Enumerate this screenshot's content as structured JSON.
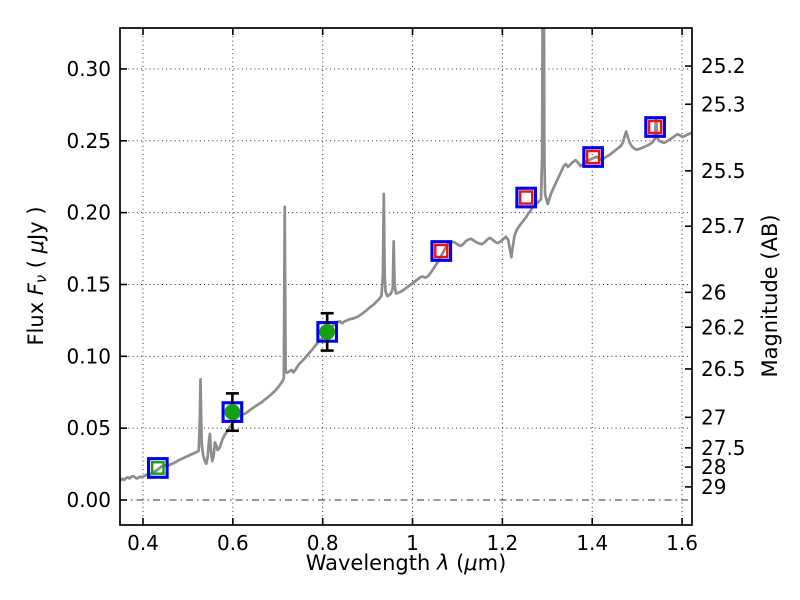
{
  "chart_data": {
    "type": "line+scatter",
    "title": "",
    "xlabel_parts": [
      {
        "t": "Wavelength  "
      },
      {
        "t": "λ",
        "i": true
      },
      {
        "t": " ("
      },
      {
        "t": "μ",
        "i": true
      },
      {
        "t": "m)"
      }
    ],
    "ylabel_left_parts": [
      {
        "t": "Flux  "
      },
      {
        "t": "F",
        "i": true
      },
      {
        "t": "ν",
        "i": true,
        "sub": true
      },
      {
        "t": "  ( "
      },
      {
        "t": "μ",
        "i": true
      },
      {
        "t": "Jy )"
      }
    ],
    "ylabel_right": "Magnitude (AB)",
    "xlim": [
      0.3488,
      1.6221
    ],
    "ylim_flux": [
      -0.0174,
      0.3285
    ],
    "grid": true,
    "x_ticks": [
      {
        "value": 0.4,
        "label": "0.4"
      },
      {
        "value": 0.6,
        "label": "0.6"
      },
      {
        "value": 0.8,
        "label": "0.8"
      },
      {
        "value": 1.0,
        "label": "1"
      },
      {
        "value": 1.2,
        "label": "1.2"
      },
      {
        "value": 1.4,
        "label": "1.4"
      },
      {
        "value": 1.6,
        "label": "1.6"
      }
    ],
    "y_ticks_flux": [
      {
        "value": 0.0,
        "label": "0.00",
        "style": "dashdot"
      },
      {
        "value": 0.05,
        "label": "0.05",
        "style": "dotted"
      },
      {
        "value": 0.1,
        "label": "0.10",
        "style": "dotted"
      },
      {
        "value": 0.15,
        "label": "0.15",
        "style": "dotted"
      },
      {
        "value": 0.2,
        "label": "0.20",
        "style": "dotted"
      },
      {
        "value": 0.25,
        "label": "0.25",
        "style": "dotted"
      },
      {
        "value": 0.3,
        "label": "0.30",
        "style": "dotted"
      }
    ],
    "y_ticks_mag": [
      {
        "value": 25.2,
        "label": "25.2"
      },
      {
        "value": 25.3,
        "label": "25.3"
      },
      {
        "value": 25.5,
        "label": "25.5"
      },
      {
        "value": 25.7,
        "label": "25.7"
      },
      {
        "value": 26.0,
        "label": "26"
      },
      {
        "value": 26.2,
        "label": "26.2"
      },
      {
        "value": 26.5,
        "label": "26.5"
      },
      {
        "value": 27.0,
        "label": "27"
      },
      {
        "value": 27.5,
        "label": "27.5"
      },
      {
        "value": 28.0,
        "label": "28"
      },
      {
        "value": 29.0,
        "label": "29"
      }
    ],
    "ab_zeropoint_ujy": 23.9,
    "colors": {
      "spectrum": "#8d8d8d",
      "square_edge": "#0000ee",
      "green": "#14a014",
      "red": "#ee1111",
      "errorbar": "#000000",
      "axes": "#000000",
      "grid": "#333333",
      "background": "#ffffff"
    },
    "photometry": [
      {
        "lambda": 0.433,
        "flux": 0.0223,
        "err": null,
        "style": "square-green-open"
      },
      {
        "lambda": 0.599,
        "flux": 0.0612,
        "err": 0.013,
        "style": "square-green-circle"
      },
      {
        "lambda": 0.81,
        "flux": 0.117,
        "err": 0.013,
        "style": "square-green-circle"
      },
      {
        "lambda": 1.064,
        "flux": 0.1733,
        "err": null,
        "style": "square-red-open"
      },
      {
        "lambda": 1.253,
        "flux": 0.2105,
        "err": null,
        "style": "square-red-open"
      },
      {
        "lambda": 1.402,
        "flux": 0.2387,
        "err": null,
        "style": "square-red-open"
      },
      {
        "lambda": 1.54,
        "flux": 0.2596,
        "err": null,
        "style": "square-red-open"
      }
    ],
    "spectrum": {
      "name": "model-spectrum",
      "points": [
        [
          0.349,
          0.0135
        ],
        [
          0.354,
          0.0148
        ],
        [
          0.358,
          0.014
        ],
        [
          0.362,
          0.0152
        ],
        [
          0.366,
          0.0158
        ],
        [
          0.37,
          0.015
        ],
        [
          0.374,
          0.0161
        ],
        [
          0.378,
          0.0166
        ],
        [
          0.382,
          0.0158
        ],
        [
          0.386,
          0.015
        ],
        [
          0.39,
          0.0155
        ],
        [
          0.394,
          0.0163
        ],
        [
          0.398,
          0.0158
        ],
        [
          0.402,
          0.0165
        ],
        [
          0.406,
          0.0172
        ],
        [
          0.41,
          0.018
        ],
        [
          0.415,
          0.0178
        ],
        [
          0.42,
          0.019
        ],
        [
          0.425,
          0.0198
        ],
        [
          0.43,
          0.0205
        ],
        [
          0.435,
          0.0218
        ],
        [
          0.44,
          0.023
        ],
        [
          0.445,
          0.0238
        ],
        [
          0.45,
          0.0241
        ],
        [
          0.455,
          0.0239
        ],
        [
          0.46,
          0.0246
        ],
        [
          0.465,
          0.0252
        ],
        [
          0.47,
          0.026
        ],
        [
          0.475,
          0.0268
        ],
        [
          0.48,
          0.0278
        ],
        [
          0.485,
          0.0285
        ],
        [
          0.49,
          0.0292
        ],
        [
          0.495,
          0.03
        ],
        [
          0.5,
          0.0306
        ],
        [
          0.505,
          0.0314
        ],
        [
          0.51,
          0.032
        ],
        [
          0.515,
          0.0328
        ],
        [
          0.52,
          0.0335
        ],
        [
          0.524,
          0.0342
        ],
        [
          0.5265,
          0.056
        ],
        [
          0.528,
          0.084
        ],
        [
          0.5295,
          0.056
        ],
        [
          0.531,
          0.038
        ],
        [
          0.534,
          0.031
        ],
        [
          0.538,
          0.027
        ],
        [
          0.541,
          0.0252
        ],
        [
          0.544,
          0.03
        ],
        [
          0.547,
          0.042
        ],
        [
          0.549,
          0.046
        ],
        [
          0.551,
          0.035
        ],
        [
          0.554,
          0.027
        ],
        [
          0.557,
          0.03
        ],
        [
          0.56,
          0.04
        ],
        [
          0.563,
          0.038
        ],
        [
          0.566,
          0.0348
        ],
        [
          0.57,
          0.036
        ],
        [
          0.574,
          0.0396
        ],
        [
          0.578,
          0.043
        ],
        [
          0.583,
          0.0458
        ],
        [
          0.588,
          0.0482
        ],
        [
          0.593,
          0.0505
        ],
        [
          0.598,
          0.053
        ],
        [
          0.604,
          0.0556
        ],
        [
          0.61,
          0.0578
        ],
        [
          0.616,
          0.059
        ],
        [
          0.622,
          0.0596
        ],
        [
          0.628,
          0.0602
        ],
        [
          0.634,
          0.0616
        ],
        [
          0.64,
          0.063
        ],
        [
          0.646,
          0.0644
        ],
        [
          0.652,
          0.0656
        ],
        [
          0.658,
          0.0668
        ],
        [
          0.664,
          0.068
        ],
        [
          0.67,
          0.0696
        ],
        [
          0.676,
          0.071
        ],
        [
          0.682,
          0.0726
        ],
        [
          0.688,
          0.0742
        ],
        [
          0.694,
          0.076
        ],
        [
          0.7,
          0.0782
        ],
        [
          0.706,
          0.0806
        ],
        [
          0.711,
          0.083
        ],
        [
          0.7135,
          0.085
        ],
        [
          0.7155,
          0.204
        ],
        [
          0.7175,
          0.089
        ],
        [
          0.721,
          0.0886
        ],
        [
          0.726,
          0.0896
        ],
        [
          0.731,
          0.0905
        ],
        [
          0.735,
          0.0888
        ],
        [
          0.739,
          0.0905
        ],
        [
          0.744,
          0.093
        ],
        [
          0.749,
          0.0952
        ],
        [
          0.754,
          0.0966
        ],
        [
          0.76,
          0.0986
        ],
        [
          0.766,
          0.1008
        ],
        [
          0.772,
          0.103
        ],
        [
          0.778,
          0.1052
        ],
        [
          0.784,
          0.1076
        ],
        [
          0.79,
          0.1098
        ],
        [
          0.796,
          0.1118
        ],
        [
          0.802,
          0.1136
        ],
        [
          0.808,
          0.1152
        ],
        [
          0.814,
          0.118
        ],
        [
          0.82,
          0.1205
        ],
        [
          0.826,
          0.1222
        ],
        [
          0.832,
          0.1236
        ],
        [
          0.838,
          0.1244
        ],
        [
          0.843,
          0.123
        ],
        [
          0.848,
          0.1242
        ],
        [
          0.854,
          0.125
        ],
        [
          0.86,
          0.1258
        ],
        [
          0.866,
          0.1262
        ],
        [
          0.872,
          0.1268
        ],
        [
          0.878,
          0.1276
        ],
        [
          0.884,
          0.1288
        ],
        [
          0.89,
          0.1302
        ],
        [
          0.896,
          0.1316
        ],
        [
          0.902,
          0.1332
        ],
        [
          0.908,
          0.1348
        ],
        [
          0.914,
          0.1362
        ],
        [
          0.92,
          0.1382
        ],
        [
          0.926,
          0.14
        ],
        [
          0.931,
          0.1424
        ],
        [
          0.934,
          0.156
        ],
        [
          0.936,
          0.213
        ],
        [
          0.938,
          0.156
        ],
        [
          0.94,
          0.145
        ],
        [
          0.944,
          0.1418
        ],
        [
          0.948,
          0.1426
        ],
        [
          0.952,
          0.1438
        ],
        [
          0.956,
          0.147
        ],
        [
          0.958,
          0.18
        ],
        [
          0.96,
          0.15
        ],
        [
          0.963,
          0.1438
        ],
        [
          0.968,
          0.1442
        ],
        [
          0.974,
          0.145
        ],
        [
          0.98,
          0.1462
        ],
        [
          0.986,
          0.1476
        ],
        [
          0.992,
          0.149
        ],
        [
          0.998,
          0.1504
        ],
        [
          1.004,
          0.1518
        ],
        [
          1.01,
          0.1532
        ],
        [
          1.016,
          0.1548
        ],
        [
          1.022,
          0.1556
        ],
        [
          1.028,
          0.1548
        ],
        [
          1.034,
          0.1556
        ],
        [
          1.04,
          0.158
        ],
        [
          1.046,
          0.1608
        ],
        [
          1.052,
          0.1636
        ],
        [
          1.058,
          0.1664
        ],
        [
          1.064,
          0.17
        ],
        [
          1.07,
          0.1736
        ],
        [
          1.076,
          0.1768
        ],
        [
          1.082,
          0.1788
        ],
        [
          1.088,
          0.1798
        ],
        [
          1.094,
          0.1792
        ],
        [
          1.1,
          0.178
        ],
        [
          1.106,
          0.1768
        ],
        [
          1.112,
          0.1778
        ],
        [
          1.118,
          0.18
        ],
        [
          1.124,
          0.1812
        ],
        [
          1.13,
          0.1818
        ],
        [
          1.136,
          0.1806
        ],
        [
          1.142,
          0.1794
        ],
        [
          1.148,
          0.1786
        ],
        [
          1.154,
          0.178
        ],
        [
          1.16,
          0.1792
        ],
        [
          1.166,
          0.1812
        ],
        [
          1.172,
          0.1824
        ],
        [
          1.178,
          0.1812
        ],
        [
          1.184,
          0.1796
        ],
        [
          1.19,
          0.1788
        ],
        [
          1.196,
          0.18
        ],
        [
          1.202,
          0.1816
        ],
        [
          1.208,
          0.1832
        ],
        [
          1.213,
          0.181
        ],
        [
          1.217,
          0.174
        ],
        [
          1.22,
          0.169
        ],
        [
          1.223,
          0.176
        ],
        [
          1.227,
          0.184
        ],
        [
          1.232,
          0.188
        ],
        [
          1.237,
          0.1905
        ],
        [
          1.242,
          0.1925
        ],
        [
          1.247,
          0.1945
        ],
        [
          1.252,
          0.1965
        ],
        [
          1.257,
          0.199
        ],
        [
          1.262,
          0.201
        ],
        [
          1.267,
          0.2036
        ],
        [
          1.272,
          0.2052
        ],
        [
          1.277,
          0.2066
        ],
        [
          1.282,
          0.208
        ],
        [
          1.286,
          0.2094
        ],
        [
          1.2885,
          0.24
        ],
        [
          1.29,
          0.4
        ],
        [
          1.292,
          0.4
        ],
        [
          1.2935,
          0.24
        ],
        [
          1.295,
          0.213
        ],
        [
          1.298,
          0.209
        ],
        [
          1.301,
          0.206
        ],
        [
          1.304,
          0.209
        ],
        [
          1.308,
          0.213
        ],
        [
          1.313,
          0.2165
        ],
        [
          1.318,
          0.22
        ],
        [
          1.324,
          0.224
        ],
        [
          1.33,
          0.228
        ],
        [
          1.336,
          0.232
        ],
        [
          1.341,
          0.2338
        ],
        [
          1.346,
          0.2318
        ],
        [
          1.351,
          0.2334
        ],
        [
          1.357,
          0.2352
        ],
        [
          1.363,
          0.2366
        ],
        [
          1.369,
          0.2346
        ],
        [
          1.374,
          0.2324
        ],
        [
          1.379,
          0.2336
        ],
        [
          1.385,
          0.2352
        ],
        [
          1.391,
          0.2364
        ],
        [
          1.397,
          0.2372
        ],
        [
          1.403,
          0.238
        ],
        [
          1.409,
          0.239
        ],
        [
          1.415,
          0.2378
        ],
        [
          1.421,
          0.2366
        ],
        [
          1.427,
          0.238
        ],
        [
          1.433,
          0.2392
        ],
        [
          1.439,
          0.2402
        ],
        [
          1.445,
          0.2418
        ],
        [
          1.451,
          0.2432
        ],
        [
          1.457,
          0.2448
        ],
        [
          1.463,
          0.2462
        ],
        [
          1.468,
          0.2486
        ],
        [
          1.472,
          0.253
        ],
        [
          1.4755,
          0.2565
        ],
        [
          1.479,
          0.2528
        ],
        [
          1.483,
          0.249
        ],
        [
          1.488,
          0.2462
        ],
        [
          1.493,
          0.2448
        ],
        [
          1.498,
          0.2438
        ],
        [
          1.504,
          0.2442
        ],
        [
          1.51,
          0.245
        ],
        [
          1.516,
          0.2458
        ],
        [
          1.522,
          0.2466
        ],
        [
          1.528,
          0.2476
        ],
        [
          1.534,
          0.249
        ],
        [
          1.539,
          0.251
        ],
        [
          1.542,
          0.266
        ],
        [
          1.545,
          0.252
        ],
        [
          1.549,
          0.25
        ],
        [
          1.554,
          0.2492
        ],
        [
          1.56,
          0.2486
        ],
        [
          1.566,
          0.2496
        ],
        [
          1.572,
          0.2508
        ],
        [
          1.578,
          0.252
        ],
        [
          1.584,
          0.2534
        ],
        [
          1.59,
          0.2546
        ],
        [
          1.596,
          0.2536
        ],
        [
          1.602,
          0.2528
        ],
        [
          1.608,
          0.2536
        ],
        [
          1.614,
          0.2546
        ],
        [
          1.6221,
          0.2556
        ]
      ]
    }
  }
}
